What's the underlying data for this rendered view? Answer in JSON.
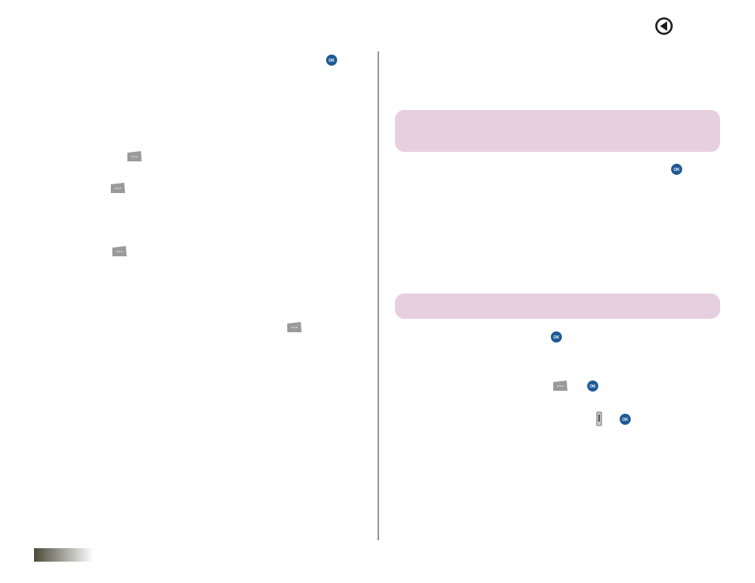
{
  "ok_icon": {
    "label": "OK"
  }
}
